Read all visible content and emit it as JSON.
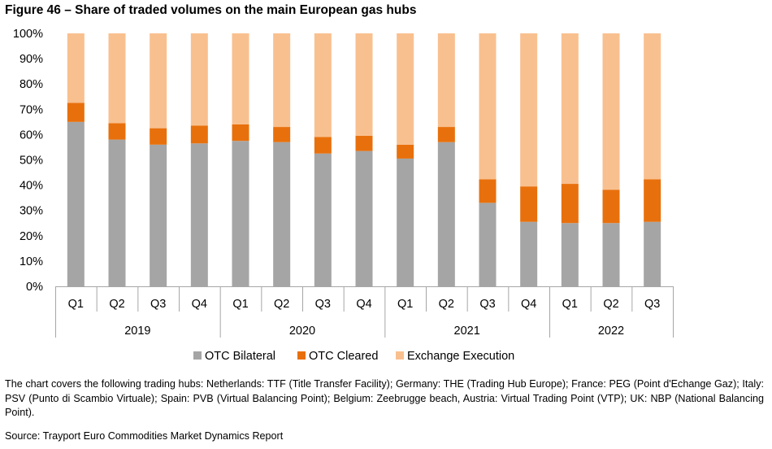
{
  "title": "Figure 46 – Share of traded volumes on the main European gas hubs",
  "chart_data": {
    "type": "bar",
    "stacked": true,
    "categories": [
      "Q1",
      "Q2",
      "Q3",
      "Q4",
      "Q1",
      "Q2",
      "Q3",
      "Q4",
      "Q1",
      "Q2",
      "Q3",
      "Q4",
      "Q1",
      "Q2",
      "Q3"
    ],
    "groups": [
      {
        "label": "2019",
        "count": 4
      },
      {
        "label": "2020",
        "count": 4
      },
      {
        "label": "2021",
        "count": 4
      },
      {
        "label": "2022",
        "count": 3
      }
    ],
    "series": [
      {
        "name": "OTC Bilateral",
        "color": "#a5a5a5",
        "values": [
          65,
          58,
          56,
          56.5,
          57.5,
          57,
          52.5,
          53.5,
          50.5,
          57,
          33,
          25.5,
          25,
          25,
          25.5
        ]
      },
      {
        "name": "OTC Cleared",
        "color": "#e8700c",
        "values": [
          7.5,
          6.5,
          6.5,
          7,
          6.5,
          6,
          6.5,
          6,
          5.5,
          6,
          9.3,
          14,
          15.5,
          13.2,
          16.8
        ]
      },
      {
        "name": "Exchange Execution",
        "color": "#f9c08f",
        "values": [
          27.5,
          35.5,
          37.5,
          36.5,
          36,
          37,
          41,
          40.5,
          44,
          37,
          57.7,
          60.5,
          59.5,
          61.8,
          57.7
        ]
      }
    ],
    "yticks": [
      "0%",
      "10%",
      "20%",
      "30%",
      "40%",
      "50%",
      "60%",
      "70%",
      "80%",
      "90%",
      "100%"
    ],
    "ylim": [
      0,
      100
    ],
    "xlabel": "",
    "ylabel": "",
    "grid": false,
    "legend": "bottom"
  },
  "note": "The chart covers the following trading hubs: Netherlands: TTF (Title Transfer Facility); Germany: THE (Trading Hub Europe); France: PEG (Point d'Echange Gaz); Italy: PSV (Punto di Scambio Virtuale); Spain: PVB (Virtual Balancing Point); Belgium: Zeebrugge beach, Austria: Virtual Trading Point (VTP); UK: NBP (National Balancing Point).",
  "source": "Source: Trayport Euro Commodities Market Dynamics Report"
}
